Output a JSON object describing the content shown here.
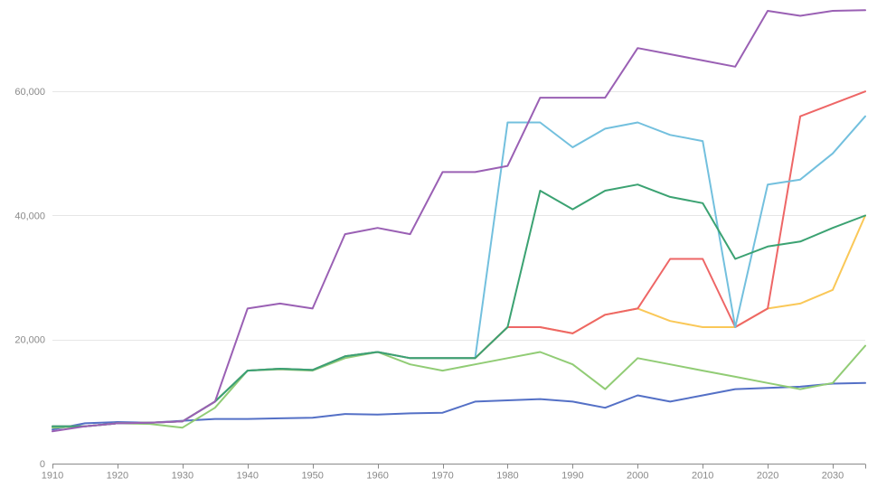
{
  "chart_data": {
    "type": "line",
    "title": "",
    "xlabel": "",
    "ylabel": "",
    "xlim": [
      1910,
      2035
    ],
    "ylim": [
      0,
      73000
    ],
    "grid": true,
    "legend": "none",
    "x": [
      1910,
      1915,
      1920,
      1925,
      1930,
      1935,
      1940,
      1945,
      1950,
      1955,
      1960,
      1965,
      1970,
      1975,
      1980,
      1985,
      1990,
      1995,
      2000,
      2005,
      2010,
      2015,
      2020,
      2025,
      2030,
      2035
    ],
    "x_ticks": [
      {
        "value": 1910,
        "label": "1910"
      },
      {
        "value": 1920,
        "label": "1920"
      },
      {
        "value": 1930,
        "label": "1930"
      },
      {
        "value": 1940,
        "label": "1940"
      },
      {
        "value": 1950,
        "label": "1950"
      },
      {
        "value": 1960,
        "label": "1960"
      },
      {
        "value": 1970,
        "label": "1970"
      },
      {
        "value": 1980,
        "label": "1980"
      },
      {
        "value": 1990,
        "label": "1990"
      },
      {
        "value": 2000,
        "label": "2000"
      },
      {
        "value": 2010,
        "label": "2010"
      },
      {
        "value": 2020,
        "label": "2020"
      },
      {
        "value": 2030,
        "label": "2030"
      }
    ],
    "y_ticks": [
      {
        "value": 0,
        "label": "0"
      },
      {
        "value": 20000,
        "label": "20,000"
      },
      {
        "value": 40000,
        "label": "40,000"
      },
      {
        "value": 60000,
        "label": "60,000"
      }
    ],
    "series": [
      {
        "color": "#5470c6",
        "values": [
          5500,
          6500,
          6700,
          6600,
          6900,
          7200,
          7200,
          7300,
          7400,
          8000,
          7900,
          8100,
          8200,
          10000,
          10200,
          10400,
          10000,
          9000,
          11000,
          10000,
          11000,
          12000,
          12200,
          12400,
          12900,
          13000
        ]
      },
      {
        "color": "#91cc75",
        "values": [
          5800,
          6000,
          6500,
          6400,
          5800,
          9000,
          15000,
          15200,
          15000,
          17000,
          18000,
          16000,
          15000,
          16000,
          17000,
          18000,
          16000,
          12000,
          17000,
          16000,
          15000,
          14000,
          13000,
          12000,
          13000,
          19000
        ]
      },
      {
        "color": "#fac858",
        "values": [
          6000,
          6000,
          6500,
          6600,
          6800,
          10000,
          15000,
          15300,
          15100,
          17300,
          18000,
          17000,
          17000,
          17000,
          22000,
          22000,
          21000,
          24000,
          25000,
          23000,
          22000,
          22000,
          25000,
          25800,
          28000,
          40000
        ]
      },
      {
        "color": "#ee6666",
        "values": [
          6000,
          6000,
          6500,
          6600,
          6800,
          10000,
          15000,
          15300,
          15100,
          17300,
          18000,
          17000,
          17000,
          17000,
          22000,
          22000,
          21000,
          24000,
          25000,
          33000,
          33000,
          22000,
          25000,
          56000,
          58000,
          60000
        ]
      },
      {
        "color": "#73c0de",
        "values": [
          6000,
          6000,
          6500,
          6600,
          6800,
          10000,
          15000,
          15300,
          15100,
          17300,
          18000,
          17000,
          17000,
          17000,
          55000,
          55000,
          51000,
          54000,
          55000,
          53000,
          52000,
          22000,
          45000,
          45800,
          50000,
          56000
        ]
      },
      {
        "color": "#3ba272",
        "values": [
          6000,
          6000,
          6500,
          6600,
          6800,
          10000,
          15000,
          15300,
          15100,
          17300,
          18000,
          17000,
          17000,
          17000,
          22000,
          44000,
          41000,
          44000,
          45000,
          43000,
          42000,
          33000,
          35000,
          35800,
          38000,
          40000
        ]
      },
      {
        "color": "#9a60b4",
        "values": [
          5200,
          6000,
          6500,
          6600,
          6800,
          10000,
          25000,
          25800,
          25000,
          37000,
          38000,
          37000,
          47000,
          47000,
          48000,
          59000,
          59000,
          59000,
          67000,
          66000,
          65000,
          64000,
          73000,
          72200,
          73000,
          73100
        ]
      }
    ]
  }
}
